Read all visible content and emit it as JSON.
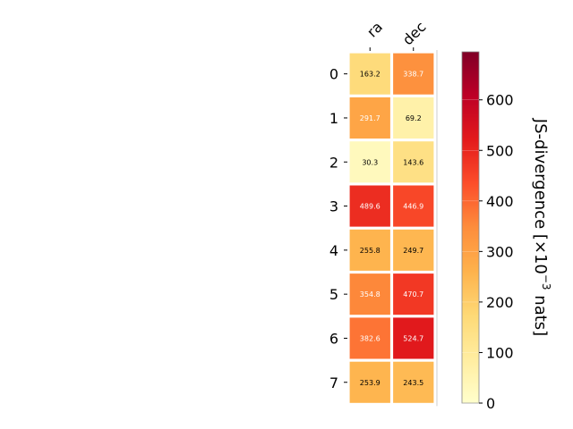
{
  "chart_data": {
    "type": "heatmap",
    "columns": [
      "ra",
      "dec"
    ],
    "rows": [
      "0",
      "1",
      "2",
      "3",
      "4",
      "5",
      "6",
      "7"
    ],
    "values": [
      [
        163.2,
        338.7
      ],
      [
        291.7,
        69.2
      ],
      [
        30.3,
        143.6
      ],
      [
        489.6,
        446.9
      ],
      [
        255.8,
        249.7
      ],
      [
        354.8,
        470.7
      ],
      [
        382.6,
        524.7
      ],
      [
        253.9,
        243.5
      ]
    ],
    "value_labels": [
      [
        "163.2",
        "338.7"
      ],
      [
        "291.7",
        "69.2"
      ],
      [
        "30.3",
        "143.6"
      ],
      [
        "489.6",
        "446.9"
      ],
      [
        "255.8",
        "249.7"
      ],
      [
        "354.8",
        "470.7"
      ],
      [
        "382.6",
        "524.7"
      ],
      [
        "253.9",
        "243.5"
      ]
    ],
    "colormap": "YlOrRd",
    "colorbar": {
      "label": "JS-divergence [×10",
      "label_exponent": "−3",
      "label_suffix": " nats]",
      "range": [
        0,
        695
      ],
      "ticks": [
        0,
        100,
        200,
        300,
        400,
        500,
        600
      ],
      "tick_labels": [
        "0",
        "100",
        "200",
        "300",
        "400",
        "500",
        "600"
      ]
    },
    "colors": {
      "stops": [
        "#ffffcc",
        "#ffeda0",
        "#fed976",
        "#feb24c",
        "#fd8d3c",
        "#fc4e2a",
        "#e31a1c",
        "#bd0026",
        "#800026"
      ],
      "label_dark": "#000000",
      "label_light": "#ffffff",
      "grid": "#ffffff"
    }
  }
}
